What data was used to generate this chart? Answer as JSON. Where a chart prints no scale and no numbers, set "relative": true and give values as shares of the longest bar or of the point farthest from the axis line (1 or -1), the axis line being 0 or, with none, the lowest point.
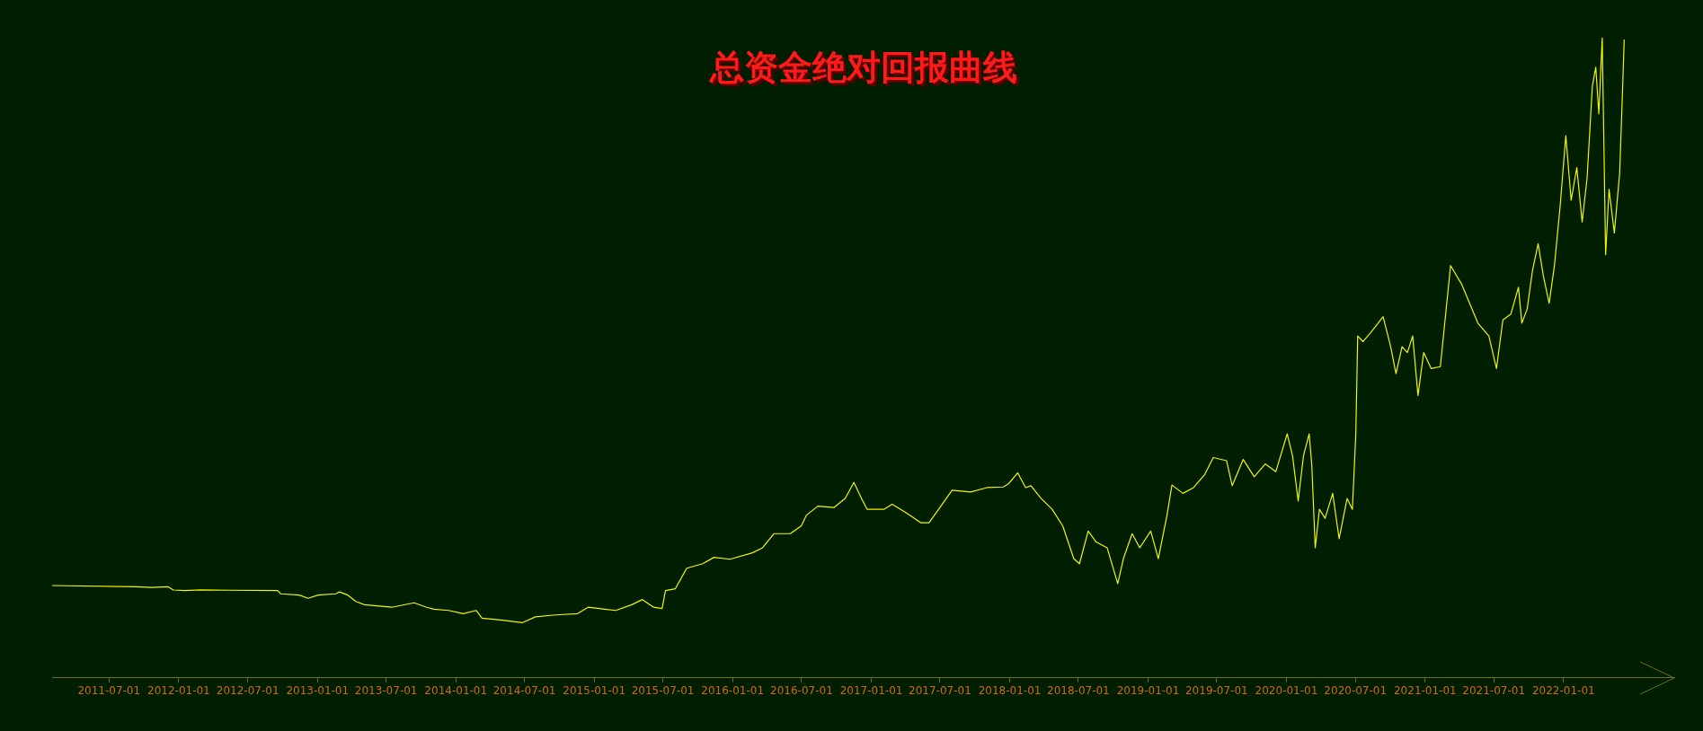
{
  "chart_data": {
    "type": "line",
    "title": "总资金绝对回报曲线",
    "relative": true,
    "color": "#f5f500",
    "marker": "none",
    "grid": false,
    "legend": false,
    "xlim": [
      "2011-02-01",
      "2022-10-20"
    ],
    "xticks": [
      "2011-07-01",
      "2012-01-01",
      "2012-07-01",
      "2013-01-01",
      "2013-07-01",
      "2014-01-01",
      "2014-07-01",
      "2015-01-01",
      "2015-07-01",
      "2016-01-01",
      "2016-07-01",
      "2017-01-01",
      "2017-07-01",
      "2018-01-01",
      "2018-07-01",
      "2019-01-01",
      "2019-07-01",
      "2020-01-01",
      "2020-07-01",
      "2021-01-01",
      "2021-07-01",
      "2022-01-01"
    ],
    "x": [
      "2011-02-01",
      "2011-09-09",
      "2011-10-21",
      "2011-12-04",
      "2011-12-18",
      "2012-01-16",
      "2012-02-28",
      "2012-09-18",
      "2012-09-26",
      "2012-11-14",
      "2012-12-07",
      "2013-01-03",
      "2013-02-18",
      "2013-02-28",
      "2013-03-22",
      "2013-04-12",
      "2013-05-05",
      "2013-07-16",
      "2013-09-13",
      "2013-10-16",
      "2013-11-04",
      "2013-12-13",
      "2014-01-20",
      "2014-02-24",
      "2014-03-11",
      "2014-04-29",
      "2014-06-26",
      "2014-07-30",
      "2014-09-21",
      "2014-11-18",
      "2014-12-16",
      "2015-01-29",
      "2015-02-27",
      "2015-04-10",
      "2015-05-08",
      "2015-06-07",
      "2015-06-29",
      "2015-07-08",
      "2015-08-03",
      "2015-09-02",
      "2015-10-14",
      "2015-11-13",
      "2015-12-25",
      "2016-02-22",
      "2016-03-20",
      "2016-04-19",
      "2016-06-01",
      "2016-06-30",
      "2016-07-14",
      "2016-08-13",
      "2016-09-25",
      "2016-10-24",
      "2016-11-16",
      "2016-12-06",
      "2016-12-21",
      "2017-02-03",
      "2017-02-25",
      "2017-03-30",
      "2017-05-12",
      "2017-06-02",
      "2017-07-01",
      "2017-08-02",
      "2017-09-20",
      "2017-11-02",
      "2017-12-15",
      "2017-12-29",
      "2018-01-22",
      "2018-02-12",
      "2018-02-26",
      "2018-03-25",
      "2018-04-23",
      "2018-05-21",
      "2018-06-19",
      "2018-07-04",
      "2018-07-27",
      "2018-08-17",
      "2018-09-15",
      "2018-10-13",
      "2018-10-28",
      "2018-11-20",
      "2018-12-10",
      "2019-01-08",
      "2019-01-28",
      "2019-02-20",
      "2019-03-05",
      "2019-04-03",
      "2019-05-01",
      "2019-05-30",
      "2019-06-22",
      "2019-07-27",
      "2019-08-11",
      "2019-09-09",
      "2019-10-08",
      "2019-11-06",
      "2019-12-04",
      "2020-01-03",
      "2020-01-17",
      "2020-02-01",
      "2020-02-15",
      "2020-03-01",
      "2020-03-08",
      "2020-03-17",
      "2020-03-28",
      "2020-04-12",
      "2020-05-02",
      "2020-05-19",
      "2020-06-09",
      "2020-06-23",
      "2020-07-02",
      "2020-07-07",
      "2020-07-21",
      "2020-08-14",
      "2020-09-12",
      "2020-10-02",
      "2020-10-16",
      "2020-11-01",
      "2020-11-15",
      "2020-11-29",
      "2020-12-13",
      "2020-12-28",
      "2021-01-17",
      "2021-02-10",
      "2021-02-24",
      "2021-03-09",
      "2021-04-07",
      "2021-05-20",
      "2021-06-18",
      "2021-07-08",
      "2021-07-25",
      "2021-08-15",
      "2021-09-04",
      "2021-09-13",
      "2021-09-27",
      "2021-10-11",
      "2021-10-26",
      "2021-11-09",
      "2021-11-24",
      "2021-12-08",
      "2021-12-23",
      "2022-01-07",
      "2022-01-21",
      "2022-02-05",
      "2022-02-19",
      "2022-03-04",
      "2022-03-18",
      "2022-03-27",
      "2022-04-04",
      "2022-04-13",
      "2022-04-22",
      "2022-05-01",
      "2022-05-15",
      "2022-05-29",
      "2022-06-04",
      "2022-06-10"
    ],
    "values": [
      0.144,
      0.142,
      0.141,
      0.142,
      0.137,
      0.136,
      0.137,
      0.136,
      0.131,
      0.129,
      0.124,
      0.129,
      0.131,
      0.134,
      0.129,
      0.119,
      0.114,
      0.11,
      0.117,
      0.11,
      0.107,
      0.105,
      0.1,
      0.105,
      0.093,
      0.09,
      0.086,
      0.095,
      0.098,
      0.1,
      0.11,
      0.107,
      0.105,
      0.114,
      0.122,
      0.11,
      0.108,
      0.136,
      0.139,
      0.171,
      0.178,
      0.188,
      0.185,
      0.195,
      0.203,
      0.225,
      0.225,
      0.237,
      0.254,
      0.268,
      0.266,
      0.28,
      0.305,
      0.28,
      0.263,
      0.263,
      0.271,
      0.259,
      0.242,
      0.242,
      0.266,
      0.293,
      0.29,
      0.297,
      0.298,
      0.303,
      0.32,
      0.297,
      0.3,
      0.28,
      0.263,
      0.237,
      0.186,
      0.178,
      0.229,
      0.212,
      0.203,
      0.147,
      0.186,
      0.225,
      0.203,
      0.229,
      0.186,
      0.254,
      0.301,
      0.288,
      0.297,
      0.317,
      0.344,
      0.339,
      0.3,
      0.341,
      0.314,
      0.334,
      0.322,
      0.381,
      0.347,
      0.276,
      0.347,
      0.381,
      0.331,
      0.203,
      0.263,
      0.249,
      0.288,
      0.217,
      0.28,
      0.263,
      0.381,
      0.534,
      0.525,
      0.542,
      0.564,
      0.517,
      0.475,
      0.517,
      0.508,
      0.534,
      0.441,
      0.508,
      0.483,
      0.486,
      0.568,
      0.644,
      0.615,
      0.554,
      0.534,
      0.483,
      0.559,
      0.568,
      0.61,
      0.554,
      0.576,
      0.636,
      0.678,
      0.627,
      0.585,
      0.644,
      0.737,
      0.847,
      0.746,
      0.797,
      0.712,
      0.78,
      0.924,
      0.954,
      0.881,
      1,
      0.661,
      0.763,
      0.695,
      0.788,
      0.89,
      0.997
    ]
  }
}
